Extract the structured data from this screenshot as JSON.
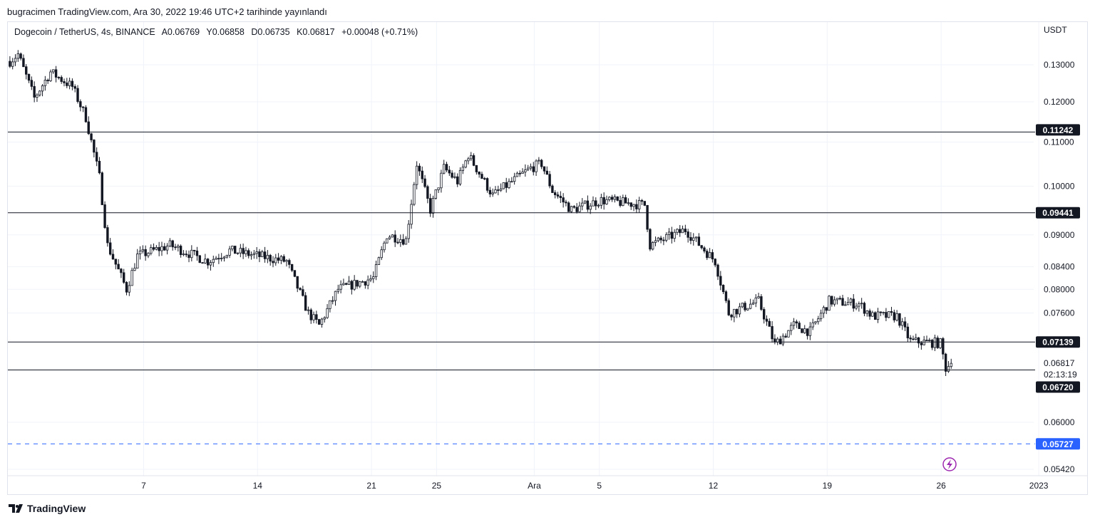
{
  "publication": "bugracimen TradingView.com, Ara 30, 2022 19:46 UTC+2 tarihinde yayınlandı",
  "legend": {
    "symbol": "Dogecoin / TetherUS, 4s, BINANCE",
    "open": "A0.06769",
    "high": "Y0.06858",
    "low": "D0.06735",
    "close": "K0.06817",
    "change": "+0.00048 (+0.71%)"
  },
  "footer": {
    "brand": "TradingView"
  },
  "chart_data": {
    "type": "candlestick",
    "scale": "log",
    "currency": "USDT",
    "ylim": [
      0.0525,
      0.139
    ],
    "yticks": [
      "0.13000",
      "0.12000",
      "0.11000",
      "0.10000",
      "0.09000",
      "0.08400",
      "0.08000",
      "0.07600",
      "0.06000",
      "0.05420"
    ],
    "xticks": [
      {
        "label": "7",
        "day": 4
      },
      {
        "label": "14",
        "day": 11
      },
      {
        "label": "21",
        "day": 18
      },
      {
        "label": "25",
        "day": 22
      },
      {
        "label": "Ara",
        "day": 28
      },
      {
        "label": "5",
        "day": 32
      },
      {
        "label": "12",
        "day": 39
      },
      {
        "label": "19",
        "day": 46
      },
      {
        "label": "26",
        "day": 53
      },
      {
        "label": "2023",
        "day": 59
      }
    ],
    "candles_per_day": 6,
    "start_day": -4.3,
    "close_path": [
      [
        0,
        0.131
      ],
      [
        3,
        0.133
      ],
      [
        9,
        0.121
      ],
      [
        15,
        0.128
      ],
      [
        23,
        0.124
      ],
      [
        28,
        0.116
      ],
      [
        33,
        0.102
      ],
      [
        36,
        0.088
      ],
      [
        43,
        0.08
      ],
      [
        47,
        0.086
      ],
      [
        59,
        0.088
      ],
      [
        73,
        0.085
      ],
      [
        81,
        0.087
      ],
      [
        102,
        0.085
      ],
      [
        110,
        0.076
      ],
      [
        114,
        0.074
      ],
      [
        121,
        0.08
      ],
      [
        134,
        0.082
      ],
      [
        139,
        0.09
      ],
      [
        146,
        0.089
      ],
      [
        150,
        0.105
      ],
      [
        155,
        0.095
      ],
      [
        160,
        0.104
      ],
      [
        165,
        0.101
      ],
      [
        169,
        0.107
      ],
      [
        178,
        0.098
      ],
      [
        192,
        0.104
      ],
      [
        196,
        0.105
      ],
      [
        200,
        0.099
      ],
      [
        207,
        0.095
      ],
      [
        218,
        0.097
      ],
      [
        234,
        0.096
      ],
      [
        236,
        0.088
      ],
      [
        249,
        0.091
      ],
      [
        260,
        0.085
      ],
      [
        265,
        0.076
      ],
      [
        276,
        0.078
      ],
      [
        282,
        0.071
      ],
      [
        289,
        0.074
      ],
      [
        295,
        0.073
      ],
      [
        302,
        0.078
      ],
      [
        313,
        0.0775
      ],
      [
        318,
        0.0755
      ],
      [
        327,
        0.0755
      ],
      [
        332,
        0.0715
      ],
      [
        343,
        0.0712
      ],
      [
        345,
        0.0675
      ],
      [
        347,
        0.06817
      ]
    ],
    "last_price": "0.06817",
    "countdown": "02:13:19",
    "horizontal_lines": [
      {
        "price": 0.11242,
        "label": "0.11242",
        "style": "solid"
      },
      {
        "price": 0.09441,
        "label": "0.09441",
        "style": "solid"
      },
      {
        "price": 0.07139,
        "label": "0.07139",
        "style": "solid"
      },
      {
        "price": 0.0672,
        "label": "0.06720",
        "style": "solid"
      },
      {
        "price": 0.05727,
        "label": "0.05727",
        "style": "dashed",
        "color": "#2962ff"
      }
    ]
  }
}
